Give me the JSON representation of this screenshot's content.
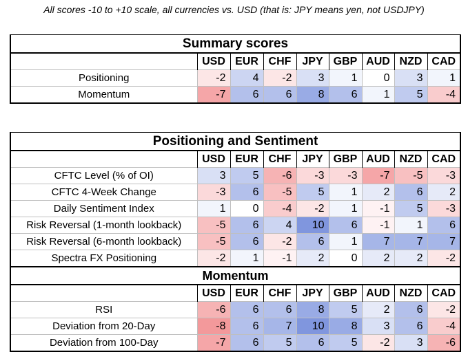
{
  "note": "All scores -10 to +10 scale, all currencies vs. USD (that is: JPY means yen, not USDJPY)",
  "currencies": [
    "USD",
    "EUR",
    "CHF",
    "JPY",
    "GBP",
    "AUD",
    "NZD",
    "CAD"
  ],
  "summary": {
    "title": "Summary scores",
    "rows": [
      {
        "label": "Positioning",
        "values": [
          "-2",
          "4",
          "-2",
          "3",
          "1",
          "0",
          "3",
          "1"
        ]
      },
      {
        "label": "Momentum",
        "values": [
          "-7",
          "6",
          "6",
          "8",
          "6",
          "1",
          "5",
          "-4"
        ]
      }
    ]
  },
  "positioning": {
    "title": "Positioning and Sentiment",
    "rows": [
      {
        "label": "CFTC Level (% of OI)",
        "values": [
          "3",
          "5",
          "-6",
          "-3",
          "-3",
          "-7",
          "-5",
          "-3"
        ]
      },
      {
        "label": "CFTC 4-Week Change",
        "values": [
          "-3",
          "6",
          "-5",
          "5",
          "1",
          "2",
          "6",
          "2"
        ]
      },
      {
        "label": "Daily Sentiment Index",
        "values": [
          "1",
          "0",
          "-4",
          "-2",
          "1",
          "-1",
          "5",
          "-3"
        ]
      },
      {
        "label": "Risk Reversal (1-month lookback)",
        "values": [
          "-5",
          "6",
          "4",
          "10",
          "6",
          "-1",
          "1",
          "6"
        ]
      },
      {
        "label": "Risk Reversal (6-month lookback)",
        "values": [
          "-5",
          "6",
          "-2",
          "6",
          "1",
          "7",
          "7",
          "7"
        ]
      },
      {
        "label": "Spectra FX Positioning",
        "values": [
          "-2",
          "1",
          "-1",
          "2",
          "0",
          "2",
          "2",
          "-2"
        ]
      }
    ]
  },
  "momentum": {
    "title": "Momentum",
    "rows": [
      {
        "label": "RSI",
        "values": [
          "-6",
          "6",
          "6",
          "8",
          "5",
          "2",
          "6",
          "-2"
        ]
      },
      {
        "label": "Deviation from 20-Day",
        "values": [
          "-8",
          "6",
          "7",
          "10",
          "8",
          "3",
          "6",
          "-4"
        ]
      },
      {
        "label": "Deviation from 100-Day",
        "values": [
          "-7",
          "6",
          "5",
          "6",
          "5",
          "-2",
          "3",
          "-6"
        ]
      }
    ]
  }
}
